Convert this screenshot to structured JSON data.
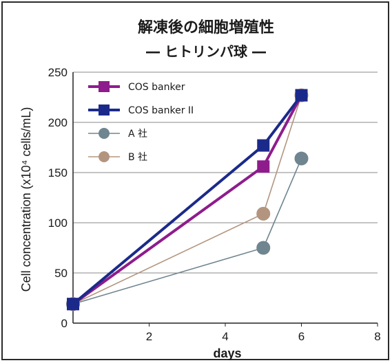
{
  "chart_data": {
    "type": "line",
    "title": "解凍後の細胞増殖性",
    "subtitle": "― ヒトリンパ球 ―",
    "xlabel": "days",
    "ylabel": "Cell concentration (x10⁴ cells/mL)",
    "xlim": [
      0,
      8
    ],
    "ylim": [
      0,
      250
    ],
    "xticks": [
      2,
      4,
      6,
      8
    ],
    "yticks": [
      0,
      50,
      100,
      150,
      200,
      250
    ],
    "grid": "horizontal",
    "legend_position": "top-left",
    "series": [
      {
        "name": "COS banker",
        "color": "#8e1c8c",
        "marker": "square",
        "x": [
          0,
          5,
          6
        ],
        "y": [
          19,
          156,
          227
        ]
      },
      {
        "name": "COS banker II",
        "color": "#1b2a8a",
        "marker": "square",
        "x": [
          0,
          5,
          6
        ],
        "y": [
          19,
          177,
          227
        ]
      },
      {
        "name": "A 社",
        "color": "#6f8590",
        "marker": "circle",
        "x": [
          0,
          5,
          6
        ],
        "y": [
          19,
          75,
          164
        ]
      },
      {
        "name": "B 社",
        "color": "#b3957f",
        "marker": "circle",
        "x": [
          0,
          5,
          6
        ],
        "y": [
          19,
          109,
          227
        ]
      }
    ]
  }
}
